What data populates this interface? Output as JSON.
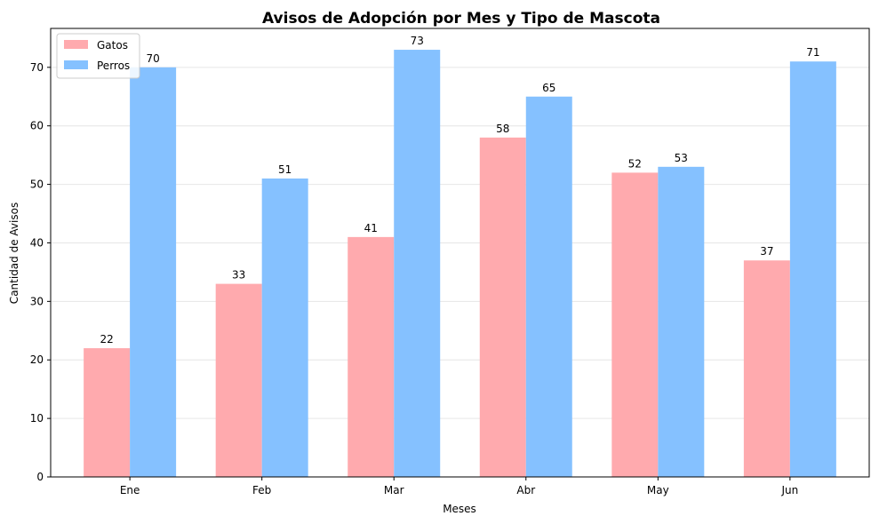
{
  "chart_data": {
    "type": "bar",
    "title": "Avisos de Adopción por Mes y Tipo de Mascota",
    "xlabel": "Meses",
    "ylabel": "Cantidad de Avisos",
    "categories": [
      "Ene",
      "Feb",
      "Mar",
      "Abr",
      "May",
      "Jun"
    ],
    "series": [
      {
        "name": "Gatos",
        "values": [
          22,
          33,
          41,
          58,
          52,
          37
        ],
        "color": "#ffaaae"
      },
      {
        "name": "Perros",
        "values": [
          70,
          51,
          73,
          65,
          53,
          71
        ],
        "color": "#85c1ff"
      }
    ],
    "ylim": [
      0,
      76.65
    ],
    "yticks": [
      0,
      10,
      20,
      30,
      40,
      50,
      60,
      70
    ],
    "grid": "horizontal",
    "legend_position": "top-left"
  }
}
